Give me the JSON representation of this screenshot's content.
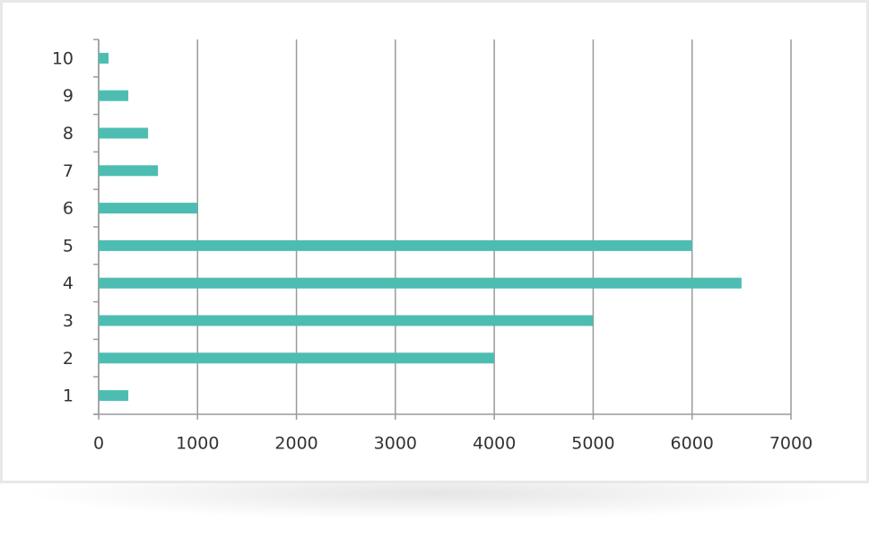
{
  "chart_data": {
    "type": "hbar",
    "categories": [
      "1",
      "2",
      "3",
      "4",
      "5",
      "6",
      "7",
      "8",
      "9",
      "10"
    ],
    "values": [
      300,
      4000,
      5000,
      6500,
      6000,
      1000,
      600,
      500,
      300,
      100
    ],
    "color": "#4dbdb2",
    "xlim": [
      0,
      7000
    ],
    "xticks": [
      0,
      1000,
      2000,
      3000,
      4000,
      5000,
      6000,
      7000
    ],
    "grid": true
  }
}
